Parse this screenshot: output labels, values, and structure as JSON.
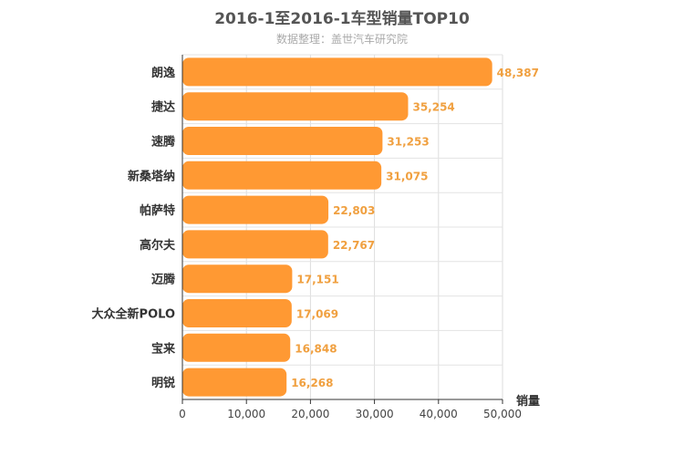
{
  "chart_data": {
    "type": "bar",
    "orientation": "horizontal",
    "title": "2016-1至2016-1车型销量TOP10",
    "subtitle": "数据整理：盖世汽车研究院",
    "xlabel": "销量",
    "ylabel": "",
    "categories": [
      "朗逸",
      "捷达",
      "速腾",
      "新桑塔纳",
      "帕萨特",
      "高尔夫",
      "迈腾",
      "大众全新POLO",
      "宝来",
      "明锐"
    ],
    "values": [
      48387,
      35254,
      31253,
      31075,
      22803,
      22767,
      17151,
      17069,
      16848,
      16268
    ],
    "value_labels": [
      "48,387",
      "35,254",
      "31,253",
      "31,075",
      "22,803",
      "22,767",
      "17,151",
      "17,069",
      "16,848",
      "16,268"
    ],
    "xlim": [
      0,
      50000
    ],
    "ticks": [
      "0",
      "10,000",
      "20,000",
      "30,000",
      "40,000",
      "50,000"
    ],
    "grid": true,
    "bar_color": "#ff9933",
    "label_color": "#f0a040"
  }
}
